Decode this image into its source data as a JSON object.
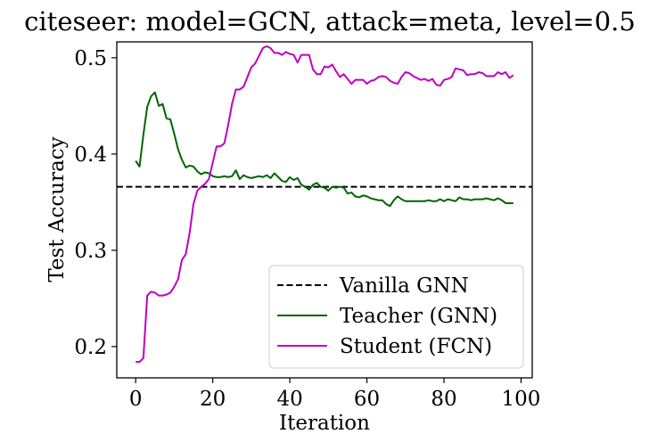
{
  "chart_data": {
    "type": "line",
    "title": "citeseer: model=GCN, attack=meta, level=0.5",
    "xlabel": "Iteration",
    "ylabel": "Test Accuracy",
    "xlim": [
      -4.9,
      102.9
    ],
    "ylim": [
      0.1675,
      0.5165
    ],
    "xticks": [
      0,
      20,
      40,
      60,
      80,
      100
    ],
    "yticks": [
      0.2,
      0.3,
      0.4,
      0.5
    ],
    "xtick_labels": [
      "0",
      "20",
      "40",
      "60",
      "80",
      "100"
    ],
    "ytick_labels": [
      "0.2",
      "0.3",
      "0.4",
      "0.5"
    ],
    "grid": false,
    "legend_position": "lower-right",
    "legend": [
      "Vanilla GNN",
      "Teacher (GNN)",
      "Student (FCN)"
    ],
    "baseline": {
      "name": "Vanilla GNN",
      "value": 0.366,
      "color": "#000000",
      "style": "dashed"
    },
    "series": [
      {
        "name": "Teacher (GNN)",
        "color": "#006400",
        "x": [
          0,
          1,
          2,
          3,
          4,
          5,
          6,
          7,
          8,
          9,
          10,
          11,
          12,
          13,
          14,
          15,
          16,
          17,
          18,
          19,
          20,
          21,
          22,
          23,
          24,
          25,
          26,
          27,
          28,
          29,
          30,
          31,
          32,
          33,
          34,
          35,
          36,
          37,
          38,
          39,
          40,
          41,
          42,
          43,
          44,
          45,
          46,
          47,
          48,
          49,
          50,
          51,
          52,
          53,
          54,
          55,
          56,
          57,
          58,
          59,
          60,
          61,
          62,
          63,
          64,
          65,
          66,
          67,
          68,
          69,
          70,
          71,
          72,
          73,
          74,
          75,
          76,
          77,
          78,
          79,
          80,
          81,
          82,
          83,
          84,
          85,
          86,
          87,
          88,
          89,
          90,
          91,
          92,
          93,
          94,
          95,
          96,
          97,
          98
        ],
        "values": [
          0.393,
          0.387,
          0.42,
          0.449,
          0.46,
          0.464,
          0.45,
          0.452,
          0.437,
          0.436,
          0.421,
          0.405,
          0.394,
          0.386,
          0.388,
          0.387,
          0.382,
          0.379,
          0.381,
          0.38,
          0.377,
          0.376,
          0.376,
          0.377,
          0.376,
          0.377,
          0.383,
          0.374,
          0.378,
          0.376,
          0.375,
          0.376,
          0.377,
          0.376,
          0.378,
          0.375,
          0.38,
          0.376,
          0.372,
          0.371,
          0.376,
          0.373,
          0.375,
          0.368,
          0.366,
          0.363,
          0.368,
          0.37,
          0.366,
          0.365,
          0.362,
          0.366,
          0.365,
          0.366,
          0.365,
          0.359,
          0.36,
          0.356,
          0.355,
          0.357,
          0.356,
          0.354,
          0.353,
          0.352,
          0.352,
          0.348,
          0.346,
          0.352,
          0.356,
          0.353,
          0.351,
          0.351,
          0.351,
          0.351,
          0.351,
          0.351,
          0.352,
          0.351,
          0.351,
          0.353,
          0.351,
          0.353,
          0.352,
          0.351,
          0.355,
          0.353,
          0.353,
          0.352,
          0.353,
          0.353,
          0.353,
          0.354,
          0.353,
          0.352,
          0.354,
          0.352,
          0.349,
          0.349,
          0.349
        ]
      },
      {
        "name": "Student (FCN)",
        "color": "#bf00bf",
        "x": [
          0,
          1,
          2,
          3,
          4,
          5,
          6,
          7,
          8,
          9,
          10,
          11,
          12,
          13,
          14,
          15,
          16,
          17,
          18,
          19,
          20,
          21,
          22,
          23,
          24,
          25,
          26,
          27,
          28,
          29,
          30,
          31,
          32,
          33,
          34,
          35,
          36,
          37,
          38,
          39,
          40,
          41,
          42,
          43,
          44,
          45,
          46,
          47,
          48,
          49,
          50,
          51,
          52,
          53,
          54,
          55,
          56,
          57,
          58,
          59,
          60,
          61,
          62,
          63,
          64,
          65,
          66,
          67,
          68,
          69,
          70,
          71,
          72,
          73,
          74,
          75,
          76,
          77,
          78,
          79,
          80,
          81,
          82,
          83,
          84,
          85,
          86,
          87,
          88,
          89,
          90,
          91,
          92,
          93,
          94,
          95,
          96,
          97,
          98
        ],
        "values": [
          0.184,
          0.184,
          0.188,
          0.253,
          0.257,
          0.256,
          0.253,
          0.253,
          0.254,
          0.256,
          0.262,
          0.27,
          0.29,
          0.296,
          0.318,
          0.348,
          0.362,
          0.366,
          0.369,
          0.374,
          0.391,
          0.408,
          0.408,
          0.411,
          0.43,
          0.452,
          0.467,
          0.467,
          0.47,
          0.48,
          0.49,
          0.494,
          0.502,
          0.51,
          0.512,
          0.51,
          0.505,
          0.505,
          0.503,
          0.506,
          0.504,
          0.503,
          0.495,
          0.503,
          0.503,
          0.503,
          0.488,
          0.483,
          0.483,
          0.491,
          0.49,
          0.493,
          0.486,
          0.48,
          0.483,
          0.478,
          0.473,
          0.477,
          0.477,
          0.477,
          0.473,
          0.476,
          0.477,
          0.48,
          0.481,
          0.48,
          0.476,
          0.474,
          0.473,
          0.48,
          0.485,
          0.484,
          0.481,
          0.479,
          0.477,
          0.478,
          0.476,
          0.478,
          0.472,
          0.471,
          0.477,
          0.478,
          0.48,
          0.489,
          0.488,
          0.487,
          0.482,
          0.483,
          0.483,
          0.485,
          0.484,
          0.481,
          0.481,
          0.481,
          0.485,
          0.483,
          0.485,
          0.479,
          0.482
        ]
      }
    ]
  }
}
